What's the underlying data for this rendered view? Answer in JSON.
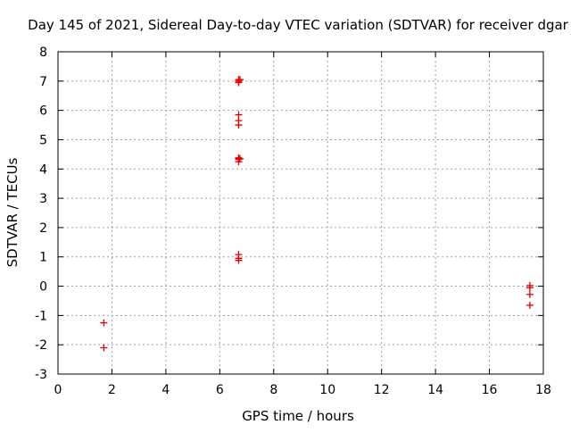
{
  "chart_data": {
    "type": "scatter",
    "title": "Day 145 of 2021, Sidereal Day-to-day VTEC variation (SDTVAR) for receiver dgar",
    "xlabel": "GPS time / hours",
    "ylabel": "SDTVAR / TECUs",
    "xlim": [
      0,
      18
    ],
    "ylim": [
      -3,
      8
    ],
    "xticks": [
      0,
      2,
      4,
      6,
      8,
      10,
      12,
      14,
      16,
      18
    ],
    "yticks": [
      -3,
      -2,
      -1,
      0,
      1,
      2,
      3,
      4,
      5,
      6,
      7,
      8
    ],
    "grid": true,
    "marker": "+",
    "color": "#e00000",
    "series": [
      {
        "name": "SDTVAR",
        "x": [
          1.7,
          1.7,
          6.7,
          6.7,
          6.7,
          6.75,
          6.7,
          6.7,
          6.7,
          6.7,
          6.7,
          6.7,
          6.7,
          6.75,
          6.7,
          6.7,
          6.7,
          17.5,
          17.5,
          17.5,
          17.5
        ],
        "y": [
          -1.25,
          -2.1,
          7.05,
          7.0,
          6.95,
          7.05,
          5.85,
          5.65,
          5.5,
          4.38,
          4.33,
          4.25,
          4.35,
          4.35,
          1.08,
          0.95,
          0.88,
          0.02,
          -0.05,
          -0.28,
          -0.65
        ]
      }
    ]
  }
}
